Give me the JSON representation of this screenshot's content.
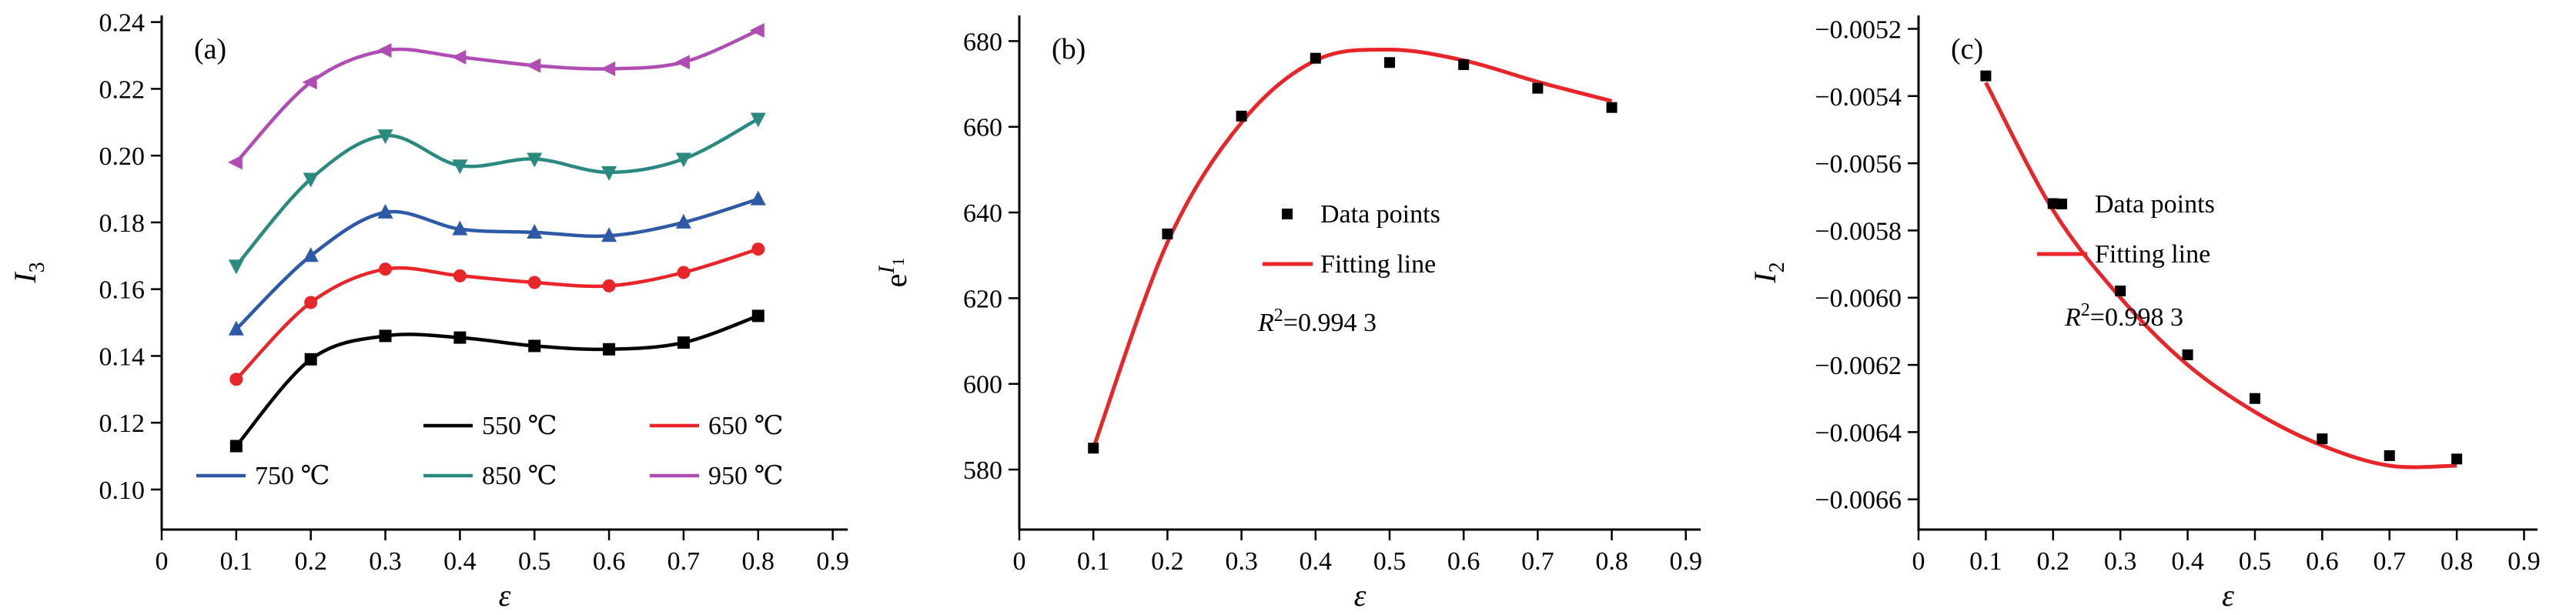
{
  "page": {
    "background": "#ffffff"
  },
  "chart_data": [
    {
      "panel_label": "(a)",
      "type": "line",
      "xlabel": "ε",
      "ylabel": {
        "main": "I",
        "sub": "3"
      },
      "xlim": [
        0,
        0.92
      ],
      "ylim": [
        0.088,
        0.242
      ],
      "xtick_values": [
        0,
        0.1,
        0.2,
        0.3,
        0.4,
        0.5,
        0.6,
        0.7,
        0.8,
        0.9
      ],
      "xtick_labels": [
        "0",
        "0.1",
        "0.2",
        "0.3",
        "0.4",
        "0.5",
        "0.6",
        "0.7",
        "0.8",
        "0.9"
      ],
      "ytick_values": [
        0.1,
        0.12,
        0.14,
        0.16,
        0.18,
        0.2,
        0.22,
        0.24
      ],
      "ytick_labels": [
        "0.10",
        "0.12",
        "0.14",
        "0.16",
        "0.18",
        "0.20",
        "0.22",
        "0.24"
      ],
      "x": [
        0.1,
        0.2,
        0.3,
        0.4,
        0.5,
        0.6,
        0.7,
        0.8
      ],
      "series": [
        {
          "name": "550 ℃",
          "color": "#000000",
          "marker": "square",
          "values": [
            0.113,
            0.139,
            0.146,
            0.1455,
            0.143,
            0.142,
            0.144,
            0.152
          ]
        },
        {
          "name": "650 ℃",
          "color": "#e8262a",
          "marker": "circle",
          "values": [
            0.133,
            0.156,
            0.166,
            0.164,
            0.162,
            0.161,
            0.165,
            0.172
          ]
        },
        {
          "name": "750 ℃",
          "color": "#2e59a7",
          "marker": "triangle-up",
          "values": [
            0.148,
            0.17,
            0.183,
            0.178,
            0.177,
            0.176,
            0.18,
            0.187
          ]
        },
        {
          "name": "850 ℃",
          "color": "#2b8a80",
          "marker": "triangle-down",
          "values": [
            0.167,
            0.193,
            0.206,
            0.197,
            0.199,
            0.195,
            0.199,
            0.211
          ]
        },
        {
          "name": "950 ℃",
          "color": "#b04db4",
          "marker": "triangle-left",
          "values": [
            0.198,
            0.222,
            0.2315,
            0.2295,
            0.227,
            0.226,
            0.228,
            0.2375
          ]
        }
      ],
      "legend_position": "bottom-right-inside"
    },
    {
      "panel_label": "(b)",
      "type": "scatter-with-fit",
      "xlabel": "ε",
      "ylabel": {
        "main": "e",
        "sup": "I",
        "sup_sub": "1"
      },
      "xlim": [
        0,
        0.92
      ],
      "ylim": [
        566,
        686
      ],
      "xtick_values": [
        0,
        0.1,
        0.2,
        0.3,
        0.4,
        0.5,
        0.6,
        0.7,
        0.8,
        0.9
      ],
      "xtick_labels": [
        "0",
        "0.1",
        "0.2",
        "0.3",
        "0.4",
        "0.5",
        "0.6",
        "0.7",
        "0.8",
        "0.9"
      ],
      "ytick_values": [
        580,
        600,
        620,
        640,
        660,
        680
      ],
      "ytick_labels": [
        "580",
        "600",
        "620",
        "640",
        "660",
        "680"
      ],
      "x": [
        0.1,
        0.2,
        0.3,
        0.4,
        0.5,
        0.6,
        0.7,
        0.8
      ],
      "points": [
        585,
        635,
        662.5,
        676,
        675,
        674.5,
        669,
        664.5
      ],
      "fit": [
        585,
        633,
        661,
        675.5,
        678,
        675.5,
        670.5,
        666
      ],
      "point_color": "#000000",
      "fit_color": "#e8262a",
      "legend": {
        "data_label": "Data points",
        "fit_label": "Fitting line",
        "r2_main": "R",
        "r2_sup": "2",
        "r2_rest": "=0.994 3"
      },
      "legend_position": "center-right-inside"
    },
    {
      "panel_label": "(c)",
      "type": "scatter-with-fit",
      "xlabel": "ε",
      "ylabel": {
        "main": "I",
        "sub": "2"
      },
      "xlim": [
        0,
        0.92
      ],
      "ylim": [
        -0.00669,
        -0.00516
      ],
      "xtick_values": [
        0,
        0.1,
        0.2,
        0.3,
        0.4,
        0.5,
        0.6,
        0.7,
        0.8,
        0.9
      ],
      "xtick_labels": [
        "0",
        "0.1",
        "0.2",
        "0.3",
        "0.4",
        "0.5",
        "0.6",
        "0.7",
        "0.8",
        "0.9"
      ],
      "ytick_values": [
        -0.0052,
        -0.0054,
        -0.0056,
        -0.0058,
        -0.006,
        -0.0062,
        -0.0064,
        -0.0066
      ],
      "ytick_labels": [
        "−0.0052",
        "−0.0054",
        "−0.0056",
        "−0.0058",
        "−0.0060",
        "−0.0062",
        "−0.0064",
        "−0.0066"
      ],
      "x": [
        0.1,
        0.2,
        0.3,
        0.4,
        0.5,
        0.6,
        0.7,
        0.8
      ],
      "points": [
        -0.00534,
        -0.00572,
        -0.00598,
        -0.00617,
        -0.0063,
        -0.00642,
        -0.00647,
        -0.00648
      ],
      "fit": [
        -0.00536,
        -0.00574,
        -0.006,
        -0.0062,
        -0.00634,
        -0.00644,
        -0.0065,
        -0.0065
      ],
      "point_color": "#000000",
      "fit_color": "#e8262a",
      "legend": {
        "data_label": "Data points",
        "fit_label": "Fitting line",
        "r2_main": "R",
        "r2_sup": "2",
        "r2_rest": "=0.998 3"
      },
      "legend_position": "center-right-inside"
    }
  ]
}
